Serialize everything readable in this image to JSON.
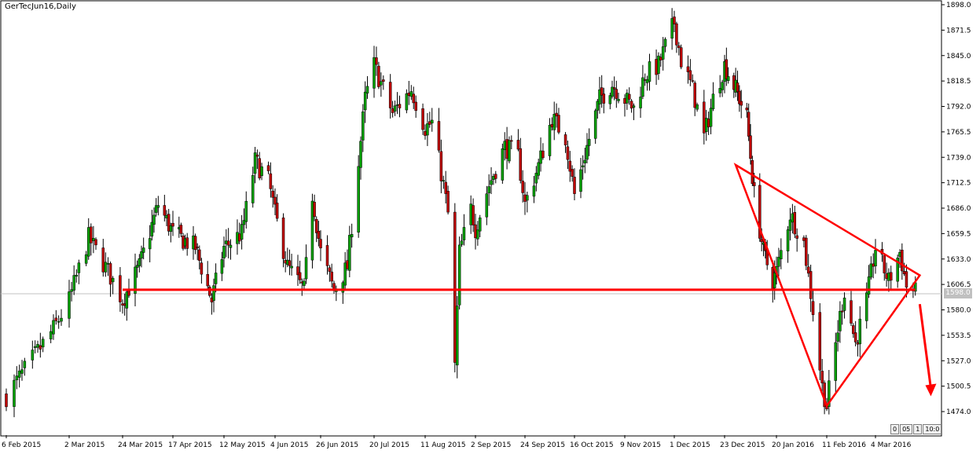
{
  "title": "GerTecJun16,Daily",
  "price_tag": "1598.0",
  "scale_buttons": [
    "0",
    "05",
    "1",
    "10:0"
  ],
  "colors": {
    "bull": "#00a000",
    "bear": "#c00000",
    "wick": "#000000",
    "annotation": "#ff0000",
    "grid_line": "#c0c0c0"
  },
  "chart_data": {
    "type": "candlestick",
    "title": "GerTecJun16,Daily",
    "x_axis": {
      "tick_labels": [
        "6 Feb 2015",
        "2 Mar 2015",
        "24 Mar 2015",
        "17 Apr 2015",
        "12 May 2015",
        "4 Jun 2015",
        "26 Jun 2015",
        "20 Jul 2015",
        "11 Aug 2015",
        "2 Sep 2015",
        "24 Sep 2015",
        "16 Oct 2015",
        "9 Nov 2015",
        "1 Dec 2015",
        "23 Dec 2015",
        "20 Jan 2016",
        "11 Feb 2016",
        "4 Mar 2016"
      ]
    },
    "y_axis": {
      "range": [
        1451,
        1900
      ],
      "tick_values": [
        1898.0,
        1871.5,
        1845.0,
        1818.5,
        1792.0,
        1765.5,
        1739.0,
        1712.5,
        1686.0,
        1659.5,
        1633.0,
        1606.5,
        1580.0,
        1553.5,
        1527.0,
        1500.5,
        1474.0
      ],
      "tick_labels": [
        "1898.0",
        "1871.5",
        "1845.0",
        "1818.5",
        "1792.0",
        "1765.5",
        "1739.0",
        "1712.5",
        "1686.0",
        "1659.5",
        "1633.0",
        "1606.5",
        "1580.0",
        "1553.5",
        "1527.0",
        "1500.5",
        "1474.0"
      ],
      "position": "right"
    },
    "anchors": [
      {
        "date": "6 Feb 2015",
        "close": 1490
      },
      {
        "date": "24 Feb 2015",
        "close": 1560
      },
      {
        "date": "2 Mar 2015",
        "close": 1590
      },
      {
        "date": "10 Mar 2015",
        "close": 1655
      },
      {
        "date": "18 Mar 2015",
        "close": 1620
      },
      {
        "date": "24 Mar 2015",
        "close": 1590
      },
      {
        "date": "1 Apr 2015",
        "close": 1625
      },
      {
        "date": "10 Apr 2015",
        "close": 1690
      },
      {
        "date": "17 Apr 2015",
        "close": 1660
      },
      {
        "date": "28 Apr 2015",
        "close": 1645
      },
      {
        "date": "6 May 2015",
        "close": 1590
      },
      {
        "date": "12 May 2015",
        "close": 1645
      },
      {
        "date": "20 May 2015",
        "close": 1660
      },
      {
        "date": "26 May 2015",
        "close": 1735
      },
      {
        "date": "1 Jun 2015",
        "close": 1715
      },
      {
        "date": "4 Jun 2015",
        "close": 1680
      },
      {
        "date": "10 Jun 2015",
        "close": 1625
      },
      {
        "date": "18 Jun 2015",
        "close": 1600
      },
      {
        "date": "22 Jun 2015",
        "close": 1700
      },
      {
        "date": "26 Jun 2015",
        "close": 1640
      },
      {
        "date": "2 Jul 2015",
        "close": 1600
      },
      {
        "date": "8 Jul 2015",
        "close": 1625
      },
      {
        "date": "13 Jul 2015",
        "close": 1735
      },
      {
        "date": "16 Jul 2015",
        "close": 1800
      },
      {
        "date": "20 Jul 2015",
        "close": 1835
      },
      {
        "date": "28 Jul 2015",
        "close": 1785
      },
      {
        "date": "5 Aug 2015",
        "close": 1810
      },
      {
        "date": "11 Aug 2015",
        "close": 1770
      },
      {
        "date": "14 Aug 2015",
        "close": 1775
      },
      {
        "date": "19 Aug 2015",
        "close": 1710
      },
      {
        "date": "21 Aug 2015",
        "close": 1680
      },
      {
        "date": "24 Aug 2015",
        "close": 1520
      },
      {
        "date": "26 Aug 2015",
        "close": 1640
      },
      {
        "date": "31 Aug 2015",
        "close": 1685
      },
      {
        "date": "2 Sep 2015",
        "close": 1665
      },
      {
        "date": "8 Sep 2015",
        "close": 1710
      },
      {
        "date": "15 Sep 2015",
        "close": 1750
      },
      {
        "date": "21 Sep 2015",
        "close": 1740
      },
      {
        "date": "24 Sep 2015",
        "close": 1690
      },
      {
        "date": "30 Sep 2015",
        "close": 1730
      },
      {
        "date": "6 Oct 2015",
        "close": 1780
      },
      {
        "date": "12 Oct 2015",
        "close": 1760
      },
      {
        "date": "16 Oct 2015",
        "close": 1700
      },
      {
        "date": "22 Oct 2015",
        "close": 1750
      },
      {
        "date": "28 Oct 2015",
        "close": 1800
      },
      {
        "date": "3 Nov 2015",
        "close": 1815
      },
      {
        "date": "9 Nov 2015",
        "close": 1800
      },
      {
        "date": "13 Nov 2015",
        "close": 1790
      },
      {
        "date": "18 Nov 2015",
        "close": 1825
      },
      {
        "date": "24 Nov 2015",
        "close": 1835
      },
      {
        "date": "1 Dec 2015",
        "close": 1880
      },
      {
        "date": "4 Dec 2015",
        "close": 1840
      },
      {
        "date": "9 Dec 2015",
        "close": 1810
      },
      {
        "date": "14 Dec 2015",
        "close": 1760
      },
      {
        "date": "18 Dec 2015",
        "close": 1800
      },
      {
        "date": "23 Dec 2015",
        "close": 1835
      },
      {
        "date": "29 Dec 2015",
        "close": 1810
      },
      {
        "date": "4 Jan 2016",
        "close": 1780
      },
      {
        "date": "8 Jan 2016",
        "close": 1700
      },
      {
        "date": "13 Jan 2016",
        "close": 1640
      },
      {
        "date": "18 Jan 2016",
        "close": 1610
      },
      {
        "date": "20 Jan 2016",
        "close": 1620
      },
      {
        "date": "26 Jan 2016",
        "close": 1680
      },
      {
        "date": "1 Feb 2016",
        "close": 1650
      },
      {
        "date": "5 Feb 2016",
        "close": 1580
      },
      {
        "date": "9 Feb 2016",
        "close": 1500
      },
      {
        "date": "11 Feb 2016",
        "close": 1480
      },
      {
        "date": "16 Feb 2016",
        "close": 1560
      },
      {
        "date": "19 Feb 2016",
        "close": 1600
      },
      {
        "date": "24 Feb 2016",
        "close": 1545
      },
      {
        "date": "29 Feb 2016",
        "close": 1590
      },
      {
        "date": "4 Mar 2016",
        "close": 1645
      },
      {
        "date": "10 Mar 2016",
        "close": 1610
      },
      {
        "date": "15 Mar 2016",
        "close": 1640
      },
      {
        "date": "18 Mar 2016",
        "close": 1605
      },
      {
        "date": "22 Mar 2016",
        "close": 1598
      }
    ],
    "annotations": [
      {
        "kind": "horizontal-line",
        "level": 1601,
        "from": "24 Mar 2015",
        "to": "22 Mar 2016"
      },
      {
        "kind": "triangle",
        "points": [
          {
            "date": "29 Dec 2015",
            "price": 1731
          },
          {
            "date": "24 Mar 2016",
            "price": 1616
          },
          {
            "date": "11 Feb 2016",
            "price": 1480
          }
        ]
      },
      {
        "kind": "arrow",
        "from": {
          "date": "24 Mar 2016",
          "price": 1586
        },
        "to": {
          "date": "29 Mar 2016",
          "price": 1490
        }
      }
    ]
  }
}
